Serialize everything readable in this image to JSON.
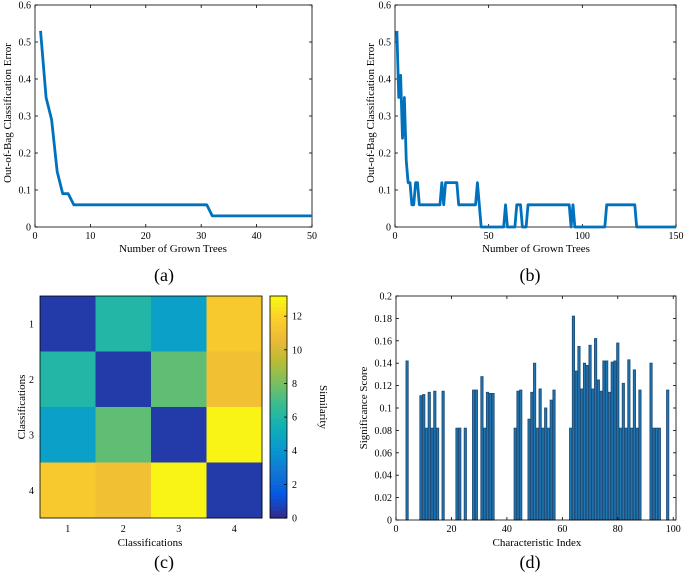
{
  "chart_data": [
    {
      "type": "line",
      "caption": "(a)",
      "xlabel": "Number of Grown Trees",
      "ylabel": "Out-of-Bag Classification Error",
      "xlim": [
        0,
        50
      ],
      "ylim": [
        0,
        0.6
      ],
      "xticks": [
        "0",
        "10",
        "20",
        "30",
        "40",
        "50"
      ],
      "yticks": [
        "0",
        "0.1",
        "0.2",
        "0.3",
        "0.4",
        "0.5",
        "0.6"
      ],
      "color": "#0072BD",
      "x": [
        1,
        2,
        3,
        4,
        5,
        6,
        7,
        8,
        31,
        32,
        50
      ],
      "y": [
        0.53,
        0.35,
        0.29,
        0.15,
        0.09,
        0.09,
        0.06,
        0.06,
        0.06,
        0.03,
        0.03
      ]
    },
    {
      "type": "line",
      "caption": "(b)",
      "xlabel": "Number of Grown Trees",
      "ylabel": "Out-of-Bag Classification Error",
      "xlim": [
        0,
        150
      ],
      "ylim": [
        0,
        0.6
      ],
      "xticks": [
        "0",
        "50",
        "100",
        "150"
      ],
      "yticks": [
        "0",
        "0.1",
        "0.2",
        "0.3",
        "0.4",
        "0.5",
        "0.6"
      ],
      "color": "#0072BD",
      "x": [
        1,
        2,
        3,
        4,
        5,
        6,
        7,
        8,
        9,
        10,
        11,
        12,
        13,
        14,
        15,
        24,
        25,
        26,
        27,
        28,
        33,
        34,
        43,
        44,
        45,
        46,
        58,
        59,
        60,
        64,
        65,
        66,
        67,
        68,
        70,
        71,
        72,
        73,
        93,
        94,
        95,
        96,
        112,
        113,
        128,
        129,
        150
      ],
      "y": [
        0.53,
        0.35,
        0.41,
        0.24,
        0.35,
        0.18,
        0.12,
        0.12,
        0.06,
        0.06,
        0.12,
        0.12,
        0.06,
        0.06,
        0.06,
        0.06,
        0.12,
        0.06,
        0.12,
        0.12,
        0.12,
        0.06,
        0.06,
        0.12,
        0.06,
        0.0,
        0.0,
        0.06,
        0.0,
        0.0,
        0.06,
        0.06,
        0.06,
        0.0,
        0.0,
        0.06,
        0.06,
        0.06,
        0.06,
        0.0,
        0.06,
        0.0,
        0.0,
        0.06,
        0.06,
        0.0,
        0.0
      ]
    },
    {
      "type": "heatmap",
      "caption": "(c)",
      "xlabel": "Classifications",
      "ylabel": "Classifications",
      "rows": [
        "1",
        "2",
        "3",
        "4"
      ],
      "cols": [
        "1",
        "2",
        "3",
        "4"
      ],
      "values": [
        [
          0.5,
          6.0,
          4.5,
          11.5
        ],
        [
          6.0,
          0.5,
          7.5,
          11.0
        ],
        [
          4.5,
          7.5,
          0.5,
          13.0
        ],
        [
          11.5,
          11.0,
          13.0,
          0.5
        ]
      ],
      "colorbar_label": "Similarity",
      "colorbar_ticks": [
        "0",
        "2",
        "4",
        "6",
        "8",
        "10",
        "12"
      ],
      "clim": [
        0,
        13.2
      ]
    },
    {
      "type": "bar",
      "caption": "(d)",
      "xlabel": "Characteristic Index",
      "ylabel": "Significance Score",
      "xlim": [
        0,
        101
      ],
      "ylim": [
        0,
        0.2
      ],
      "xticks": [
        "0",
        "20",
        "40",
        "60",
        "80",
        "100"
      ],
      "yticks": [
        "0",
        "0.02",
        "0.04",
        "0.06",
        "0.08",
        "0.1",
        "0.12",
        "0.14",
        "0.16",
        "0.18",
        "0.2"
      ],
      "bar_color": "#1F4E79",
      "x": [
        4,
        9,
        10,
        11,
        12,
        13,
        14,
        15,
        17,
        22,
        23,
        25,
        28,
        29,
        31,
        32,
        33,
        34,
        35,
        43,
        44,
        45,
        48,
        49,
        50,
        51,
        52,
        53,
        54,
        55,
        56,
        57,
        63,
        64,
        65,
        66,
        67,
        68,
        69,
        70,
        71,
        72,
        73,
        74,
        75,
        76,
        77,
        78,
        79,
        80,
        81,
        82,
        83,
        84,
        85,
        86,
        87,
        88,
        92,
        93,
        94,
        95,
        98
      ],
      "values": [
        0.142,
        0.111,
        0.112,
        0.082,
        0.114,
        0.082,
        0.115,
        0.082,
        0.115,
        0.082,
        0.082,
        0.082,
        0.116,
        0.116,
        0.128,
        0.082,
        0.114,
        0.113,
        0.113,
        0.082,
        0.115,
        0.116,
        0.09,
        0.114,
        0.14,
        0.082,
        0.117,
        0.082,
        0.1,
        0.082,
        0.107,
        0.116,
        0.082,
        0.182,
        0.133,
        0.155,
        0.117,
        0.14,
        0.138,
        0.156,
        0.117,
        0.162,
        0.125,
        0.115,
        0.142,
        0.142,
        0.114,
        0.141,
        0.142,
        0.158,
        0.082,
        0.122,
        0.082,
        0.143,
        0.082,
        0.134,
        0.082,
        0.116,
        0.14,
        0.082,
        0.082,
        0.082,
        0.116
      ]
    }
  ]
}
